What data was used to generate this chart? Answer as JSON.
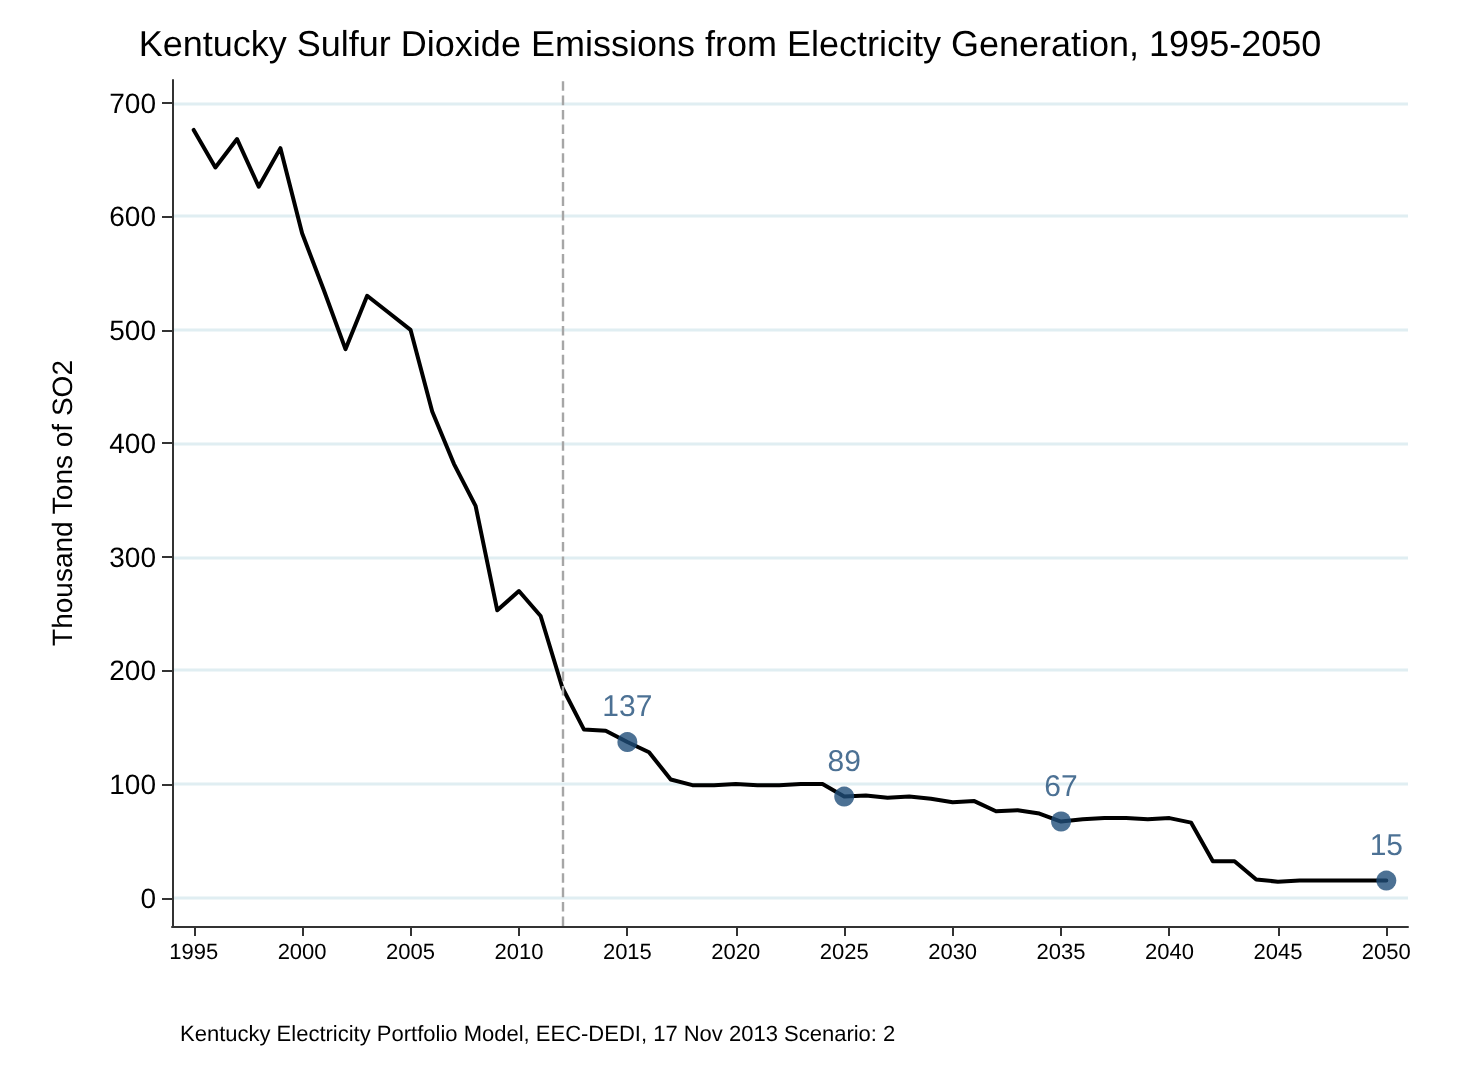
{
  "chart_data": {
    "type": "line",
    "title": "Kentucky Sulfur Dioxide Emissions from Electricity Generation, 1995-2050",
    "ylabel": "Thousand Tons of SO2",
    "annotations": [
      "Kentucky Electricity Portfolio Model, EEC-DEDI, 17 Nov 2013 Scenario: 2"
    ],
    "xlim": [
      1994,
      2051
    ],
    "xticks": [
      1995,
      2000,
      2005,
      2010,
      2015,
      2020,
      2025,
      2030,
      2035,
      2040,
      2045,
      2050
    ],
    "ylim": [
      -25,
      720
    ],
    "yticks": [
      0,
      100,
      200,
      300,
      400,
      500,
      600,
      700
    ],
    "grid": "y",
    "line_style": "solid",
    "marker": "none",
    "ref_lines": [
      {
        "axis": "x",
        "value": 2012,
        "color": "#a6a6a6",
        "line_style": "dashed"
      }
    ],
    "series": [
      {
        "type": "line",
        "color": "#000000",
        "x": [
          1995,
          1996,
          1997,
          1998,
          1999,
          2000,
          2001,
          2002,
          2003,
          2004,
          2005,
          2006,
          2007,
          2008,
          2009,
          2010,
          2011,
          2012,
          2013,
          2014,
          2015,
          2016,
          2017,
          2018,
          2019,
          2020,
          2021,
          2022,
          2023,
          2024,
          2025,
          2026,
          2027,
          2028,
          2029,
          2030,
          2031,
          2032,
          2033,
          2034,
          2035,
          2036,
          2037,
          2038,
          2039,
          2040,
          2041,
          2042,
          2043,
          2044,
          2045,
          2046,
          2047,
          2048,
          2049,
          2050
        ],
        "values": [
          676,
          643,
          668,
          626,
          660,
          585,
          535,
          483,
          530,
          515,
          500,
          428,
          382,
          345,
          253,
          270,
          248,
          185,
          148,
          147,
          137,
          128,
          104,
          99,
          99,
          100,
          99,
          99,
          100,
          100,
          89,
          90,
          88,
          89,
          87,
          84,
          85,
          76,
          77,
          74,
          67,
          69,
          70,
          70,
          69,
          70,
          66,
          32,
          32,
          16,
          14,
          15,
          15,
          15,
          15,
          15
        ]
      },
      {
        "type": "scatter",
        "color": "#1f4e79",
        "marker": "circle",
        "x": [
          2015,
          2025,
          2035,
          2050
        ],
        "values": [
          137,
          89,
          67,
          15
        ],
        "value_labels": [
          "137",
          "89",
          "67",
          "15"
        ]
      }
    ]
  }
}
